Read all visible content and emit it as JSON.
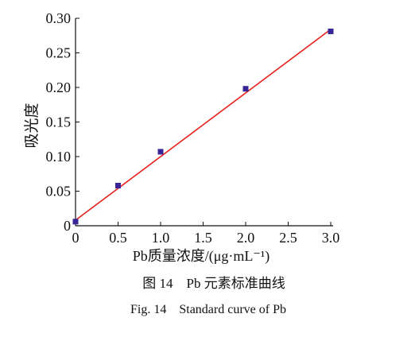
{
  "chart_data": {
    "type": "scatter",
    "xlabel": "Pb质量浓度/(μg·mL⁻¹)",
    "ylabel": "吸光度",
    "xlim": [
      0,
      3.0
    ],
    "ylim": [
      0,
      0.3
    ],
    "xticks": [
      0,
      0.5,
      1.0,
      1.5,
      2.0,
      2.5,
      3.0
    ],
    "xtick_labels": [
      "0",
      "0.5",
      "1.0",
      "1.5",
      "2.0",
      "2.5",
      "3.0"
    ],
    "yticks": [
      0,
      0.05,
      0.1,
      0.15,
      0.2,
      0.25,
      0.3
    ],
    "ytick_labels": [
      "0",
      "0.05",
      "0.10",
      "0.15",
      "0.20",
      "0.25",
      "0.30"
    ],
    "grid": false,
    "series": [
      {
        "type": "line",
        "color": "#e3221c",
        "x": [
          0,
          3.0
        ],
        "y": [
          0.008,
          0.284
        ]
      },
      {
        "type": "scatter",
        "color": "#3a2596",
        "x": [
          0,
          0.5,
          1.0,
          2.0,
          3.0
        ],
        "y": [
          0.006,
          0.058,
          0.107,
          0.198,
          0.281
        ]
      }
    ]
  },
  "caption": {
    "cn": "图 14　Pb 元素标准曲线",
    "en": "Fig. 14　Standard curve of Pb"
  }
}
